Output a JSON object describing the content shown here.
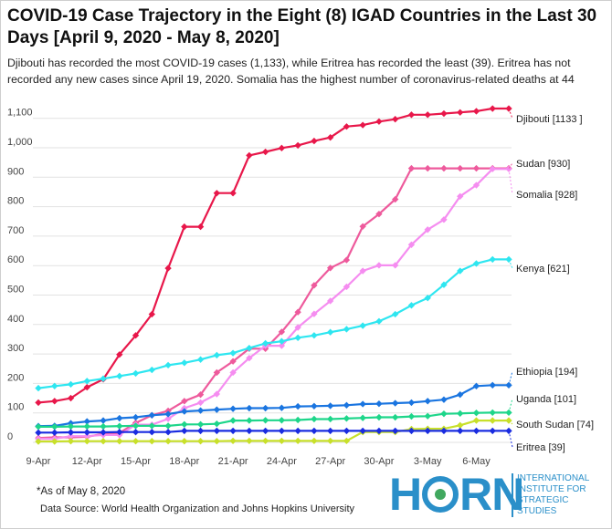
{
  "title": "COVID-19 Case Trajectory in the Eight (8) IGAD Countries in the Last 30 Days [April 9, 2020 - May 8, 2020]",
  "subtitle": "Djibouti has recorded the most COVID-19 cases (1,133), while Eritrea has recorded the least (39). Eritrea has not recorded any new cases since April 19, 2020. Somalia has the highest number of coronavirus-related deaths at 44",
  "footnote": "*As of May 8, 2020",
  "source": "Data Source: World Health Organization and Johns Hopkins University",
  "logo": {
    "word_left": "H",
    "word_right": "RN",
    "lines": [
      "INTERNATIONAL",
      "INSTITUTE FOR",
      "STRATEGIC",
      "STUDIES"
    ]
  },
  "chart_data": {
    "type": "line",
    "x": [
      "9-Apr",
      "10-Apr",
      "11-Apr",
      "12-Apr",
      "13-Apr",
      "14-Apr",
      "15-Apr",
      "16-Apr",
      "17-Apr",
      "18-Apr",
      "19-Apr",
      "20-Apr",
      "21-Apr",
      "22-Apr",
      "23-Apr",
      "24-Apr",
      "25-Apr",
      "26-Apr",
      "27-Apr",
      "28-Apr",
      "29-Apr",
      "30-Apr",
      "1-May",
      "2-May",
      "3-May",
      "4-May",
      "5-May",
      "6-May",
      "7-May",
      "8-May"
    ],
    "x_tick_labels": [
      "9-Apr",
      "12-Apr",
      "15-Apr",
      "18-Apr",
      "21-Apr",
      "24-Apr",
      "27-Apr",
      "30-Apr",
      "3-May",
      "6-May"
    ],
    "y_ticks": [
      0,
      100,
      200,
      300,
      400,
      500,
      600,
      700,
      800,
      900,
      "1,000",
      "1,100"
    ],
    "ylim": [
      0,
      1150
    ],
    "grid": true,
    "series": [
      {
        "name": "Djibouti [1133 ]",
        "color": "#e8174a",
        "values": [
          135,
          140,
          150,
          187,
          214,
          298,
          363,
          435,
          591,
          732,
          732,
          846,
          846,
          974,
          986,
          999,
          1008,
          1023,
          1035,
          1072,
          1077,
          1089,
          1097,
          1112,
          1112,
          1116,
          1120,
          1124,
          1133,
          1133
        ]
      },
      {
        "name": "Sudan [930]",
        "color": "#ee5a9c",
        "values": [
          15,
          17,
          17,
          19,
          29,
          32,
          66,
          92,
          107,
          140,
          162,
          237,
          275,
          318,
          318,
          375,
          442,
          533,
          592,
          619,
          733,
          775,
          825,
          930,
          930,
          930,
          930,
          930,
          930,
          930
        ]
      },
      {
        "name": "Somalia [928]",
        "color": "#f58df0",
        "values": [
          12,
          12,
          21,
          21,
          25,
          25,
          60,
          60,
          80,
          116,
          135,
          164,
          237,
          286,
          328,
          328,
          390,
          436,
          480,
          528,
          582,
          601,
          601,
          671,
          722,
          756,
          835,
          873,
          928,
          928
        ]
      },
      {
        "name": "Kenya [621]",
        "color": "#2ee6f0",
        "values": [
          184,
          191,
          197,
          208,
          216,
          225,
          234,
          246,
          262,
          270,
          281,
          296,
          303,
          320,
          336,
          343,
          355,
          363,
          374,
          384,
          396,
          411,
          435,
          465,
          490,
          535,
          582,
          607,
          621,
          621
        ]
      },
      {
        "name": "Ethiopia [194]",
        "color": "#1a75e0",
        "values": [
          55,
          56,
          65,
          71,
          74,
          82,
          85,
          92,
          96,
          105,
          108,
          111,
          114,
          116,
          116,
          117,
          122,
          123,
          124,
          126,
          130,
          131,
          133,
          135,
          140,
          145,
          162,
          191,
          194,
          194
        ]
      },
      {
        "name": "Uganda [101]",
        "color": "#1ed68a",
        "values": [
          53,
          53,
          54,
          54,
          54,
          55,
          56,
          56,
          56,
          61,
          61,
          63,
          74,
          74,
          75,
          75,
          76,
          79,
          79,
          81,
          83,
          85,
          85,
          88,
          89,
          97,
          98,
          100,
          101,
          101
        ]
      },
      {
        "name": "South Sudan [74]",
        "color": "#c8e02a",
        "values": [
          3,
          3,
          4,
          4,
          4,
          4,
          4,
          4,
          4,
          4,
          4,
          4,
          5,
          5,
          5,
          5,
          5,
          5,
          5,
          5,
          35,
          35,
          35,
          45,
          46,
          46,
          58,
          74,
          74,
          74
        ]
      },
      {
        "name": "Eritrea [39]",
        "color": "#1a2ce0",
        "values": [
          33,
          33,
          34,
          34,
          34,
          35,
          35,
          35,
          35,
          39,
          39,
          39,
          39,
          39,
          39,
          39,
          39,
          39,
          39,
          39,
          39,
          39,
          39,
          39,
          39,
          39,
          39,
          39,
          39,
          39
        ]
      }
    ]
  }
}
